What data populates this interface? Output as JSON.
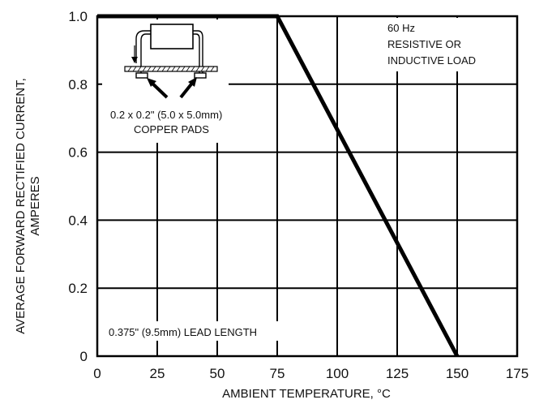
{
  "chart_data": {
    "type": "line",
    "title": "",
    "xlabel": "AMBIENT TEMPERATURE, °C",
    "ylabel_lines": [
      "AVERAGE FORWARD RECTIFIED CURRENT,",
      "AMPERES"
    ],
    "xlim": [
      0,
      175
    ],
    "ylim": [
      0,
      1.0
    ],
    "x_ticks": [
      0,
      25,
      50,
      75,
      100,
      125,
      150,
      175
    ],
    "y_ticks": [
      0,
      0.2,
      0.4,
      0.6,
      0.8,
      1.0
    ],
    "x_tick_labels": [
      "0",
      "25",
      "50",
      "75",
      "100",
      "125",
      "150",
      "175"
    ],
    "y_tick_labels": [
      "0",
      "0.2",
      "0.4",
      "0.6",
      "0.8",
      "1.0"
    ],
    "grid": true,
    "series": [
      {
        "x": [
          0,
          75,
          150
        ],
        "y": [
          1.0,
          1.0,
          0
        ]
      }
    ],
    "annotations": {
      "load_lines": [
        "60 Hz",
        "RESISTIVE OR",
        "INDUCTIVE LOAD"
      ],
      "pads_lines": [
        "0.2 x 0.2\" (5.0 x 5.0mm)",
        "COPPER PADS"
      ],
      "lead_length": "0.375\" (9.5mm) LEAD LENGTH"
    }
  }
}
